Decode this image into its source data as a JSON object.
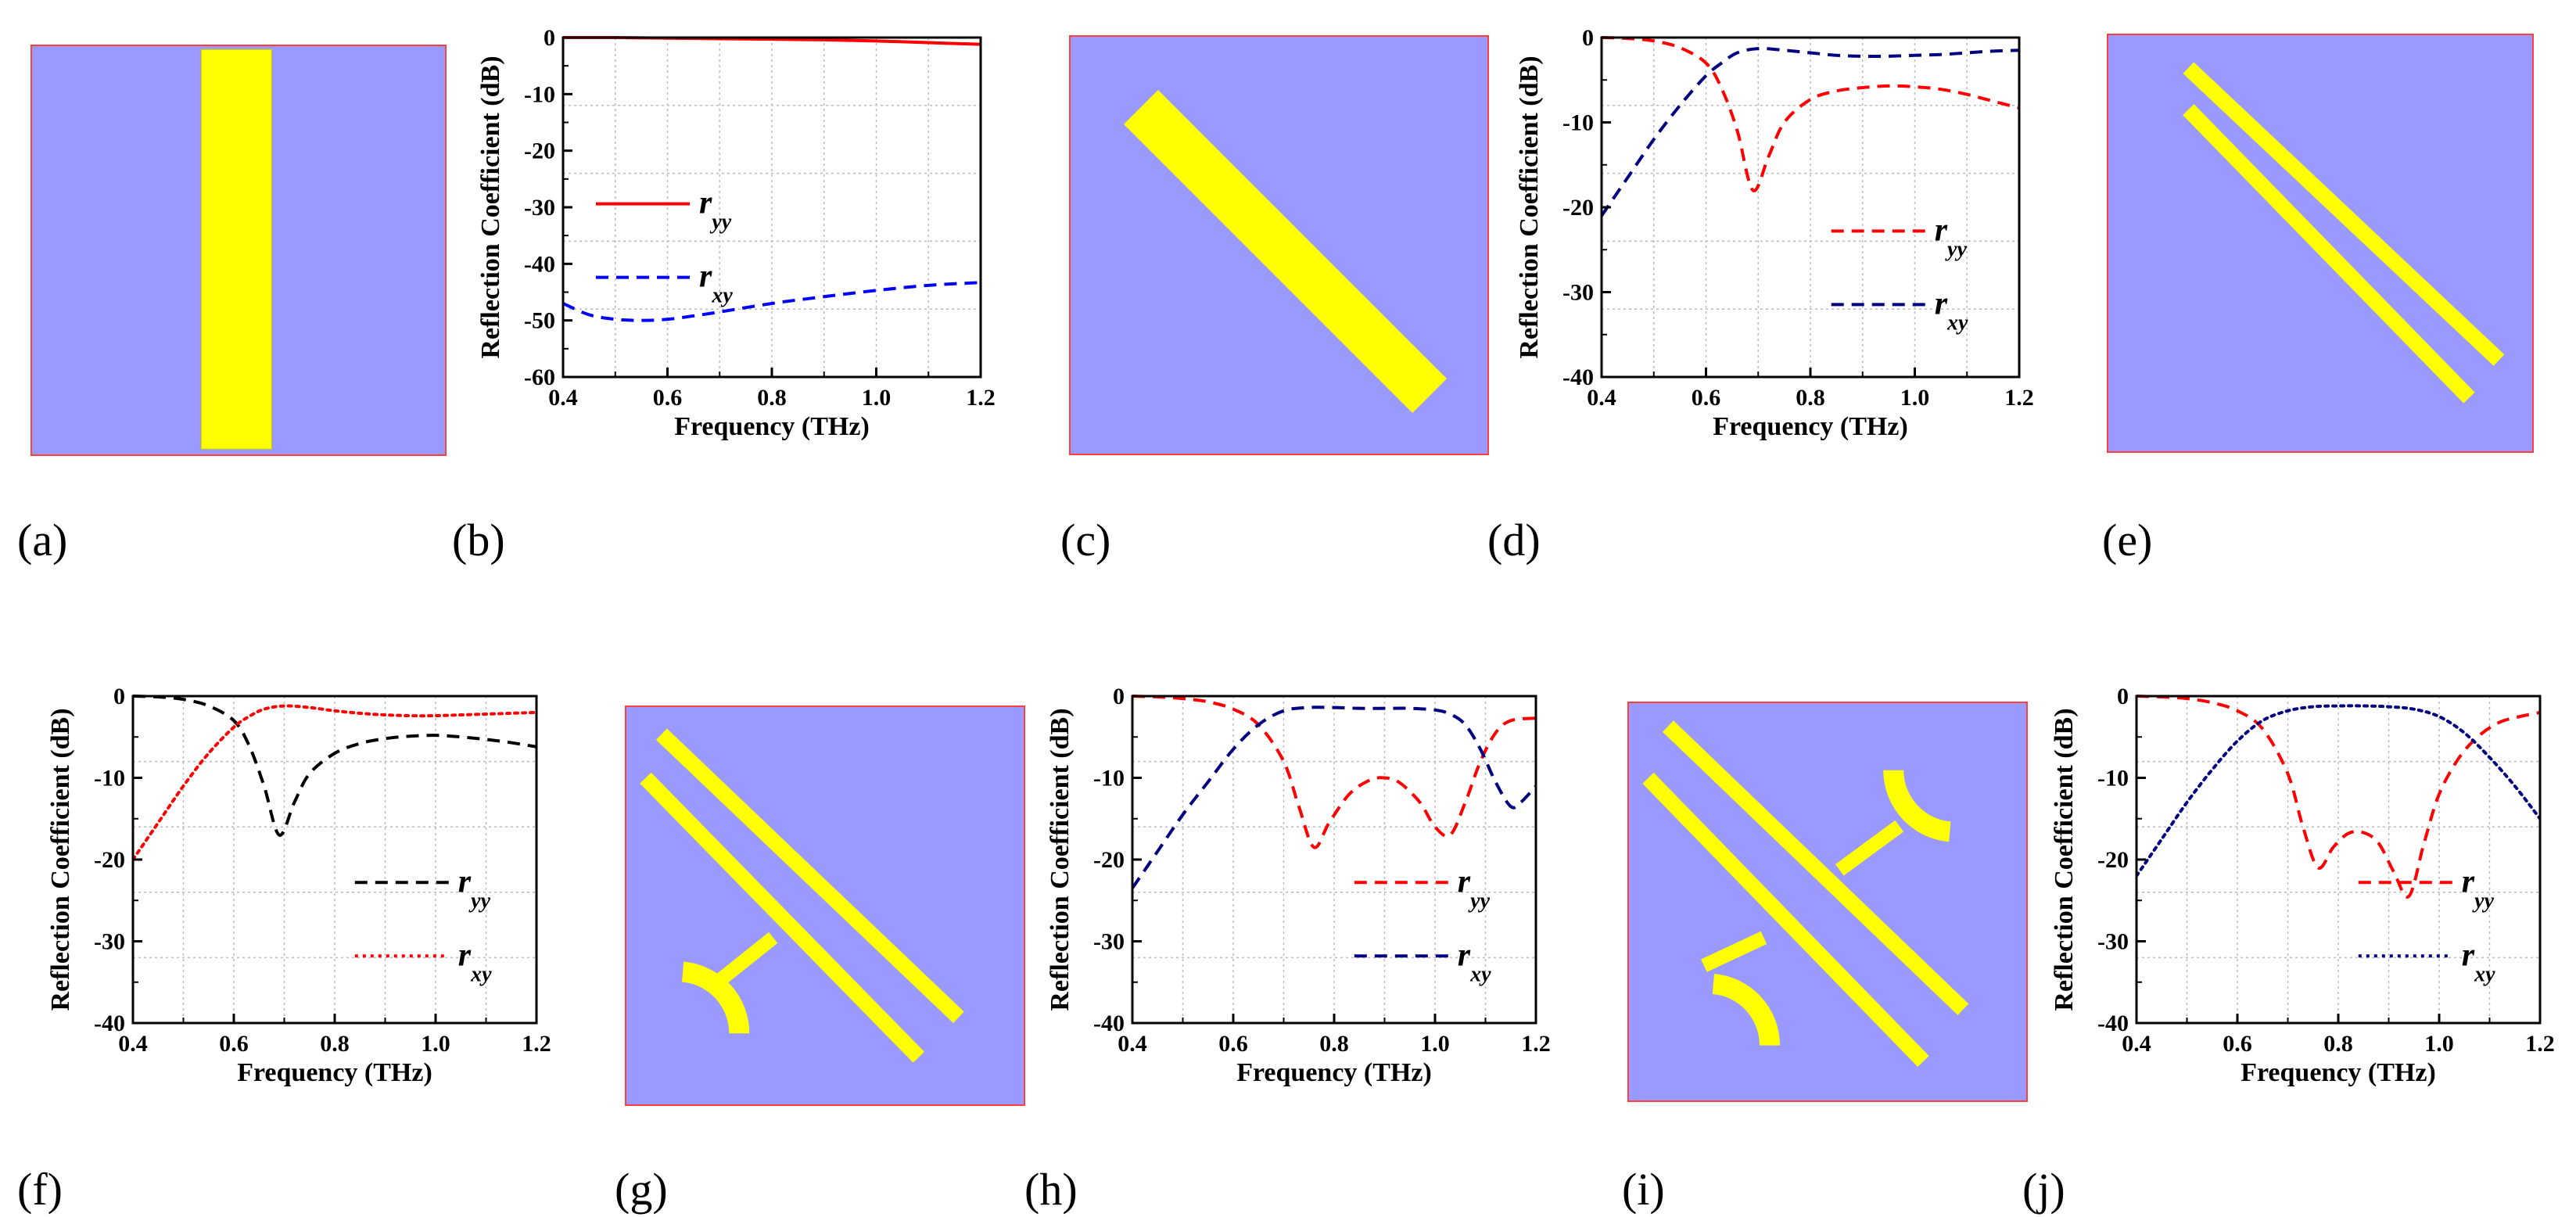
{
  "colors": {
    "substrate": "#9999ff",
    "substrate_border": "#ff4040",
    "metal": "#ffff00",
    "grid": "#bbbbbb",
    "axis": "#000000"
  },
  "panel_labels": [
    "(a)",
    "(b)",
    "(c)",
    "(d)",
    "(e)",
    "(f)",
    "(g)",
    "(h)",
    "(i)",
    "(j)"
  ],
  "unit_cells": [
    {
      "panel": "a",
      "structure": "vertical-bar"
    },
    {
      "panel": "c",
      "structure": "diagonal-bar"
    },
    {
      "panel": "e",
      "structure": "double-diagonal-bars"
    },
    {
      "panel": "g",
      "structure": "double-bars-one-arc"
    },
    {
      "panel": "i",
      "structure": "double-bars-two-arcs"
    }
  ],
  "chart_data": [
    {
      "panel": "b",
      "type": "line",
      "xlabel": "Frequency (THz)",
      "ylabel": "Reflection Coefficient (dB)",
      "xlim": [
        0.4,
        1.2
      ],
      "ylim": [
        -60,
        0
      ],
      "xticks": [
        0.4,
        0.6,
        0.8,
        1.0,
        1.2
      ],
      "xtick_labels": [
        "0.4",
        "0.6",
        "0.8",
        "1.0",
        "1.2"
      ],
      "yticks": [
        0,
        -10,
        -20,
        -30,
        -40,
        -50,
        -60
      ],
      "ytick_labels": [
        "0",
        "-10",
        "-20",
        "-30",
        "-40",
        "-50",
        "-60"
      ],
      "legend_position": "center-left",
      "series": [
        {
          "name": "r",
          "subscript": "yy",
          "color": "#ff0000",
          "style": "solid",
          "x": [
            0.4,
            0.5,
            0.6,
            0.7,
            0.8,
            0.9,
            1.0,
            1.1,
            1.2
          ],
          "values": [
            0,
            0,
            -0.1,
            -0.2,
            -0.3,
            -0.4,
            -0.6,
            -0.9,
            -1.2
          ]
        },
        {
          "name": "r",
          "subscript": "xy",
          "color": "#0000ff",
          "style": "dashed",
          "x": [
            0.4,
            0.45,
            0.5,
            0.55,
            0.6,
            0.65,
            0.7,
            0.8,
            0.9,
            1.0,
            1.1,
            1.2
          ],
          "values": [
            -47,
            -49,
            -49.8,
            -50,
            -49.8,
            -49.2,
            -48.5,
            -47,
            -45.8,
            -44.7,
            -43.8,
            -43.3
          ]
        }
      ]
    },
    {
      "panel": "d",
      "type": "line",
      "xlabel": "Frequency (THz)",
      "ylabel": "Reflection Coefficient (dB)",
      "xlim": [
        0.4,
        1.2
      ],
      "ylim": [
        -40,
        0
      ],
      "xticks": [
        0.4,
        0.6,
        0.8,
        1.0,
        1.2
      ],
      "xtick_labels": [
        "0.4",
        "0.6",
        "0.8",
        "1.0",
        "1.2"
      ],
      "yticks": [
        0,
        -10,
        -20,
        -30,
        -40
      ],
      "ytick_labels": [
        "0",
        "-10",
        "-20",
        "-30",
        "-40"
      ],
      "legend_position": "bottom-right",
      "series": [
        {
          "name": "r",
          "subscript": "yy",
          "color": "#ff0000",
          "style": "dashed",
          "x": [
            0.4,
            0.45,
            0.5,
            0.55,
            0.6,
            0.63,
            0.66,
            0.69,
            0.72,
            0.75,
            0.8,
            0.85,
            0.9,
            0.95,
            1.0,
            1.05,
            1.1,
            1.15,
            1.2
          ],
          "values": [
            0,
            -0.1,
            -0.4,
            -1.2,
            -3,
            -6,
            -11,
            -18,
            -14,
            -10,
            -7.3,
            -6.3,
            -5.9,
            -5.7,
            -5.8,
            -6.1,
            -6.7,
            -7.5,
            -8.3
          ]
        },
        {
          "name": "r",
          "subscript": "xy",
          "color": "#000080",
          "style": "dashed",
          "x": [
            0.4,
            0.45,
            0.5,
            0.55,
            0.6,
            0.63,
            0.66,
            0.7,
            0.75,
            0.8,
            0.85,
            0.9,
            0.95,
            1.0,
            1.05,
            1.1,
            1.15,
            1.2
          ],
          "values": [
            -21,
            -16.5,
            -12,
            -8,
            -4.5,
            -3,
            -1.8,
            -1.3,
            -1.5,
            -1.8,
            -2.1,
            -2.2,
            -2.2,
            -2.1,
            -2.0,
            -1.8,
            -1.6,
            -1.5
          ]
        }
      ]
    },
    {
      "panel": "f",
      "type": "line",
      "xlabel": "Frequency (THz)",
      "ylabel": "Reflection Coefficient (dB)",
      "xlim": [
        0.4,
        1.2
      ],
      "ylim": [
        -40,
        0
      ],
      "xticks": [
        0.4,
        0.6,
        0.8,
        1.0,
        1.2
      ],
      "xtick_labels": [
        "0.4",
        "0.6",
        "0.8",
        "1.0",
        "1.2"
      ],
      "yticks": [
        0,
        -10,
        -20,
        -30,
        -40
      ],
      "ytick_labels": [
        "0",
        "-10",
        "-20",
        "-30",
        "-40"
      ],
      "legend_position": "bottom-right",
      "series": [
        {
          "name": "r",
          "subscript": "yy",
          "color": "#000000",
          "style": "dashed",
          "x": [
            0.4,
            0.45,
            0.5,
            0.55,
            0.6,
            0.63,
            0.66,
            0.69,
            0.72,
            0.75,
            0.8,
            0.85,
            0.9,
            0.95,
            1.0,
            1.05,
            1.1,
            1.15,
            1.2
          ],
          "values": [
            0,
            -0.1,
            -0.4,
            -1.2,
            -3,
            -6,
            -11,
            -17,
            -13,
            -9.5,
            -7,
            -5.8,
            -5.2,
            -4.9,
            -4.8,
            -5.0,
            -5.3,
            -5.7,
            -6.2
          ]
        },
        {
          "name": "r",
          "subscript": "xy",
          "color": "#ff0000",
          "style": "dotted",
          "x": [
            0.4,
            0.45,
            0.5,
            0.55,
            0.6,
            0.63,
            0.66,
            0.7,
            0.75,
            0.8,
            0.85,
            0.9,
            0.95,
            1.0,
            1.05,
            1.1,
            1.15,
            1.2
          ],
          "values": [
            -20,
            -15.5,
            -11,
            -7,
            -3.8,
            -2.5,
            -1.6,
            -1.2,
            -1.4,
            -1.8,
            -2.1,
            -2.3,
            -2.4,
            -2.4,
            -2.3,
            -2.2,
            -2.1,
            -2.0
          ]
        }
      ]
    },
    {
      "panel": "h",
      "type": "line",
      "xlabel": "Frequency (THz)",
      "ylabel": "Reflection Coefficient (dB)",
      "xlim": [
        0.4,
        1.2
      ],
      "ylim": [
        -40,
        0
      ],
      "xticks": [
        0.4,
        0.6,
        0.8,
        1.0,
        1.2
      ],
      "xtick_labels": [
        "0.4",
        "0.6",
        "0.8",
        "1.0",
        "1.2"
      ],
      "yticks": [
        0,
        -10,
        -20,
        -30,
        -40
      ],
      "ytick_labels": [
        "0",
        "-10",
        "-20",
        "-30",
        "-40"
      ],
      "legend_position": "bottom-right",
      "series": [
        {
          "name": "r",
          "subscript": "yy",
          "color": "#ff0000",
          "style": "dashed",
          "x": [
            0.4,
            0.45,
            0.5,
            0.55,
            0.6,
            0.65,
            0.7,
            0.73,
            0.76,
            0.79,
            0.83,
            0.87,
            0.9,
            0.93,
            0.97,
            1.0,
            1.03,
            1.06,
            1.09,
            1.12,
            1.15,
            1.2
          ],
          "values": [
            0,
            -0.1,
            -0.3,
            -0.7,
            -1.6,
            -3.5,
            -8,
            -13.5,
            -18.5,
            -15.5,
            -12,
            -10.3,
            -10,
            -10.6,
            -13,
            -16,
            -17,
            -13,
            -8,
            -4.5,
            -3,
            -2.7
          ]
        },
        {
          "name": "r",
          "subscript": "xy",
          "color": "#000080",
          "style": "dashed",
          "x": [
            0.4,
            0.45,
            0.5,
            0.55,
            0.6,
            0.65,
            0.7,
            0.75,
            0.8,
            0.85,
            0.9,
            0.95,
            1.0,
            1.03,
            1.06,
            1.09,
            1.12,
            1.15,
            1.17,
            1.2
          ],
          "values": [
            -23.5,
            -19,
            -14.5,
            -10.5,
            -6.5,
            -3.5,
            -1.8,
            -1.4,
            -1.4,
            -1.5,
            -1.5,
            -1.5,
            -1.7,
            -2.2,
            -3.5,
            -6.5,
            -10.5,
            -13.5,
            -13,
            -11
          ]
        }
      ]
    },
    {
      "panel": "j",
      "type": "line",
      "xlabel": "Frequency (THz)",
      "ylabel": "Reflection Coefficient (dB)",
      "xlim": [
        0.4,
        1.2
      ],
      "ylim": [
        -40,
        0
      ],
      "xticks": [
        0.4,
        0.6,
        0.8,
        1.0,
        1.2
      ],
      "xtick_labels": [
        "0.4",
        "0.6",
        "0.8",
        "1.0",
        "1.2"
      ],
      "yticks": [
        0,
        -10,
        -20,
        -30,
        -40
      ],
      "ytick_labels": [
        "0",
        "-10",
        "-20",
        "-30",
        "-40"
      ],
      "legend_position": "bottom-right",
      "series": [
        {
          "name": "r",
          "subscript": "yy",
          "color": "#ff0000",
          "style": "dashed",
          "x": [
            0.4,
            0.45,
            0.5,
            0.55,
            0.6,
            0.65,
            0.7,
            0.73,
            0.76,
            0.79,
            0.82,
            0.85,
            0.88,
            0.91,
            0.94,
            0.97,
            1.0,
            1.04,
            1.08,
            1.12,
            1.16,
            1.2
          ],
          "values": [
            0,
            -0.1,
            -0.3,
            -0.8,
            -1.8,
            -4,
            -9.5,
            -16,
            -21,
            -18.5,
            -16.8,
            -16.7,
            -18,
            -21.5,
            -24.5,
            -18,
            -12,
            -7.5,
            -4.8,
            -3.2,
            -2.5,
            -2
          ]
        },
        {
          "name": "r",
          "subscript": "xy",
          "color": "#000080",
          "style": "dotted",
          "x": [
            0.4,
            0.45,
            0.5,
            0.55,
            0.6,
            0.65,
            0.7,
            0.75,
            0.8,
            0.85,
            0.9,
            0.95,
            1.0,
            1.05,
            1.1,
            1.15,
            1.2
          ],
          "values": [
            -22,
            -17.5,
            -13,
            -9,
            -5.5,
            -3,
            -1.8,
            -1.3,
            -1.2,
            -1.2,
            -1.3,
            -1.6,
            -2.5,
            -4.5,
            -7.5,
            -11,
            -15
          ]
        }
      ]
    }
  ]
}
